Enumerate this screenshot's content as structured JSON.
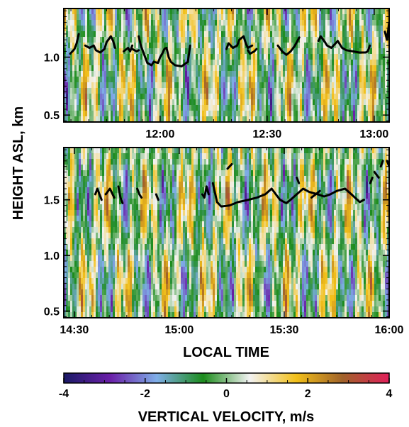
{
  "chart_data": {
    "type": "heatmap",
    "ylabel": "HEIGHT ASL, km",
    "xlabel": "LOCAL TIME",
    "colorbar": {
      "label": "VERTICAL VELOCITY, m/s",
      "range": [
        -4,
        4
      ],
      "ticks": [
        -4,
        -2,
        0,
        2,
        4
      ],
      "tick_labels": [
        "-4",
        "-2",
        "0",
        "2",
        "4"
      ],
      "colors": [
        "#1a1a66",
        "#6a1fa8",
        "#7faee8",
        "#1c8c1c",
        "#f2f2f2",
        "#f2c01a",
        "#a0622a",
        "#e0205a"
      ]
    },
    "panels": [
      {
        "name": "top",
        "x_range_hours": [
          11.55,
          13.07
        ],
        "ylim": [
          0.44,
          1.42
        ],
        "yticks": [
          0.5,
          1.0
        ],
        "ytick_labels": [
          "0.5",
          "1.0"
        ],
        "xticks": [
          12.0,
          12.5,
          13.0
        ],
        "xtick_labels": [
          "12:00",
          "12:30",
          "13:00"
        ],
        "overlay_line": {
          "color": "#000000",
          "segments": [
            [
              [
                11.58,
                1.03
              ],
              [
                11.6,
                1.07
              ],
              [
                11.61,
                1.12
              ],
              [
                11.62,
                1.2
              ]
            ],
            [
              [
                11.65,
                1.1
              ],
              [
                11.67,
                1.08
              ],
              [
                11.69,
                1.1
              ],
              [
                11.7,
                1.06
              ],
              [
                11.72,
                1.04
              ],
              [
                11.74,
                1.07
              ],
              [
                11.75,
                1.13
              ],
              [
                11.77,
                1.18
              ],
              [
                11.78,
                1.14
              ],
              [
                11.79,
                1.08
              ]
            ],
            [
              [
                11.83,
                1.05
              ],
              [
                11.85,
                1.08
              ],
              [
                11.86,
                1.05
              ],
              [
                11.87,
                1.1
              ]
            ],
            [
              [
                11.87,
                1.07
              ],
              [
                11.89,
                1.05
              ],
              [
                11.9,
                1.06
              ]
            ],
            [
              [
                11.9,
                1.18
              ],
              [
                11.91,
                1.1
              ],
              [
                11.92,
                1.05
              ],
              [
                11.94,
                0.95
              ],
              [
                11.96,
                0.93
              ],
              [
                11.97,
                0.96
              ],
              [
                11.99,
                0.95
              ],
              [
                12.0,
                1.0
              ],
              [
                12.01,
                1.03
              ],
              [
                12.02,
                1.07
              ],
              [
                12.03,
                1.08
              ],
              [
                12.04,
                1.0
              ],
              [
                12.05,
                0.96
              ],
              [
                12.07,
                0.93
              ],
              [
                12.1,
                0.92
              ],
              [
                12.13,
                0.96
              ],
              [
                12.14,
                1.1
              ]
            ],
            [
              [
                12.31,
                1.07
              ],
              [
                12.32,
                1.12
              ],
              [
                12.34,
                1.08
              ],
              [
                12.36,
                1.1
              ],
              [
                12.37,
                1.15
              ],
              [
                12.39,
                1.18
              ],
              [
                12.4,
                1.12
              ],
              [
                12.41,
                1.08
              ],
              [
                12.43,
                1.1
              ]
            ],
            [
              [
                12.41,
                1.06
              ],
              [
                12.42,
                1.03
              ],
              [
                12.44,
                1.05
              ],
              [
                12.45,
                1.07
              ]
            ],
            [
              [
                12.55,
                1.1
              ],
              [
                12.57,
                1.05
              ],
              [
                12.59,
                1.02
              ],
              [
                12.61,
                1.05
              ],
              [
                12.63,
                1.1
              ],
              [
                12.65,
                1.17
              ]
            ],
            [
              [
                12.74,
                1.14
              ],
              [
                12.75,
                1.18
              ],
              [
                12.77,
                1.13
              ],
              [
                12.78,
                1.1
              ],
              [
                12.8,
                1.08
              ],
              [
                12.82,
                1.12
              ],
              [
                12.83,
                1.14
              ],
              [
                12.85,
                1.08
              ],
              [
                12.87,
                1.06
              ],
              [
                12.9,
                1.05
              ],
              [
                12.93,
                1.04
              ],
              [
                12.96,
                1.04
              ],
              [
                12.97,
                1.05
              ],
              [
                12.98,
                1.1
              ]
            ],
            [
              [
                13.05,
                1.22
              ],
              [
                13.06,
                1.15
              ],
              [
                13.07,
                1.3
              ]
            ]
          ]
        }
      },
      {
        "name": "bottom",
        "x_range_hours": [
          14.45,
          16.0
        ],
        "ylim": [
          0.44,
          1.97
        ],
        "yticks": [
          0.5,
          1.0,
          1.5
        ],
        "ytick_labels": [
          "0.5",
          "1.0",
          "1.5"
        ],
        "xticks": [
          14.5,
          15.0,
          15.5,
          16.0
        ],
        "xtick_labels": [
          "14:30",
          "15:00",
          "15:30",
          "16:00"
        ],
        "overlay_line": {
          "color": "#000000",
          "segments": [
            [
              [
                14.6,
                1.55
              ],
              [
                14.61,
                1.6
              ],
              [
                14.62,
                1.55
              ],
              [
                14.63,
                1.5
              ]
            ],
            [
              [
                14.65,
                1.55
              ],
              [
                14.67,
                1.6
              ],
              [
                14.69,
                1.52
              ]
            ],
            [
              [
                14.71,
                1.62
              ],
              [
                14.72,
                1.52
              ],
              [
                14.73,
                1.47
              ]
            ],
            [
              [
                14.8,
                1.6
              ],
              [
                14.81,
                1.55
              ],
              [
                14.82,
                1.52
              ]
            ],
            [
              [
                14.89,
                1.55
              ],
              [
                14.9,
                1.5
              ]
            ],
            [
              [
                15.11,
                1.55
              ],
              [
                15.12,
                1.52
              ],
              [
                15.13,
                1.62
              ],
              [
                15.14,
                1.55
              ]
            ],
            [
              [
                15.16,
                1.65
              ],
              [
                15.18,
                1.48
              ],
              [
                15.2,
                1.44
              ],
              [
                15.24,
                1.45
              ],
              [
                15.28,
                1.48
              ],
              [
                15.33,
                1.5
              ],
              [
                15.37,
                1.52
              ],
              [
                15.41,
                1.55
              ],
              [
                15.44,
                1.6
              ],
              [
                15.46,
                1.55
              ],
              [
                15.48,
                1.5
              ],
              [
                15.51,
                1.47
              ],
              [
                15.53,
                1.5
              ],
              [
                15.56,
                1.55
              ],
              [
                15.59,
                1.6
              ],
              [
                15.62,
                1.57
              ],
              [
                15.66,
                1.55
              ],
              [
                15.69,
                1.53
              ],
              [
                15.72,
                1.55
              ],
              [
                15.75,
                1.58
              ],
              [
                15.79,
                1.6
              ],
              [
                15.82,
                1.55
              ],
              [
                15.86,
                1.48
              ],
              [
                15.88,
                1.5
              ]
            ],
            [
              [
                15.56,
                1.7
              ],
              [
                15.57,
                1.65
              ]
            ],
            [
              [
                15.63,
                1.52
              ],
              [
                15.65,
                1.55
              ],
              [
                15.67,
                1.58
              ]
            ],
            [
              [
                15.91,
                1.65
              ],
              [
                15.92,
                1.7
              ]
            ],
            [
              [
                15.93,
                1.75
              ],
              [
                15.95,
                1.7
              ]
            ],
            [
              [
                15.96,
                1.8
              ],
              [
                15.97,
                1.85
              ]
            ],
            [
              [
                15.23,
                1.78
              ],
              [
                15.25,
                1.82
              ]
            ],
            [
              [
                15.99,
                1.85
              ],
              [
                16.0,
                1.8
              ]
            ]
          ]
        }
      }
    ]
  }
}
